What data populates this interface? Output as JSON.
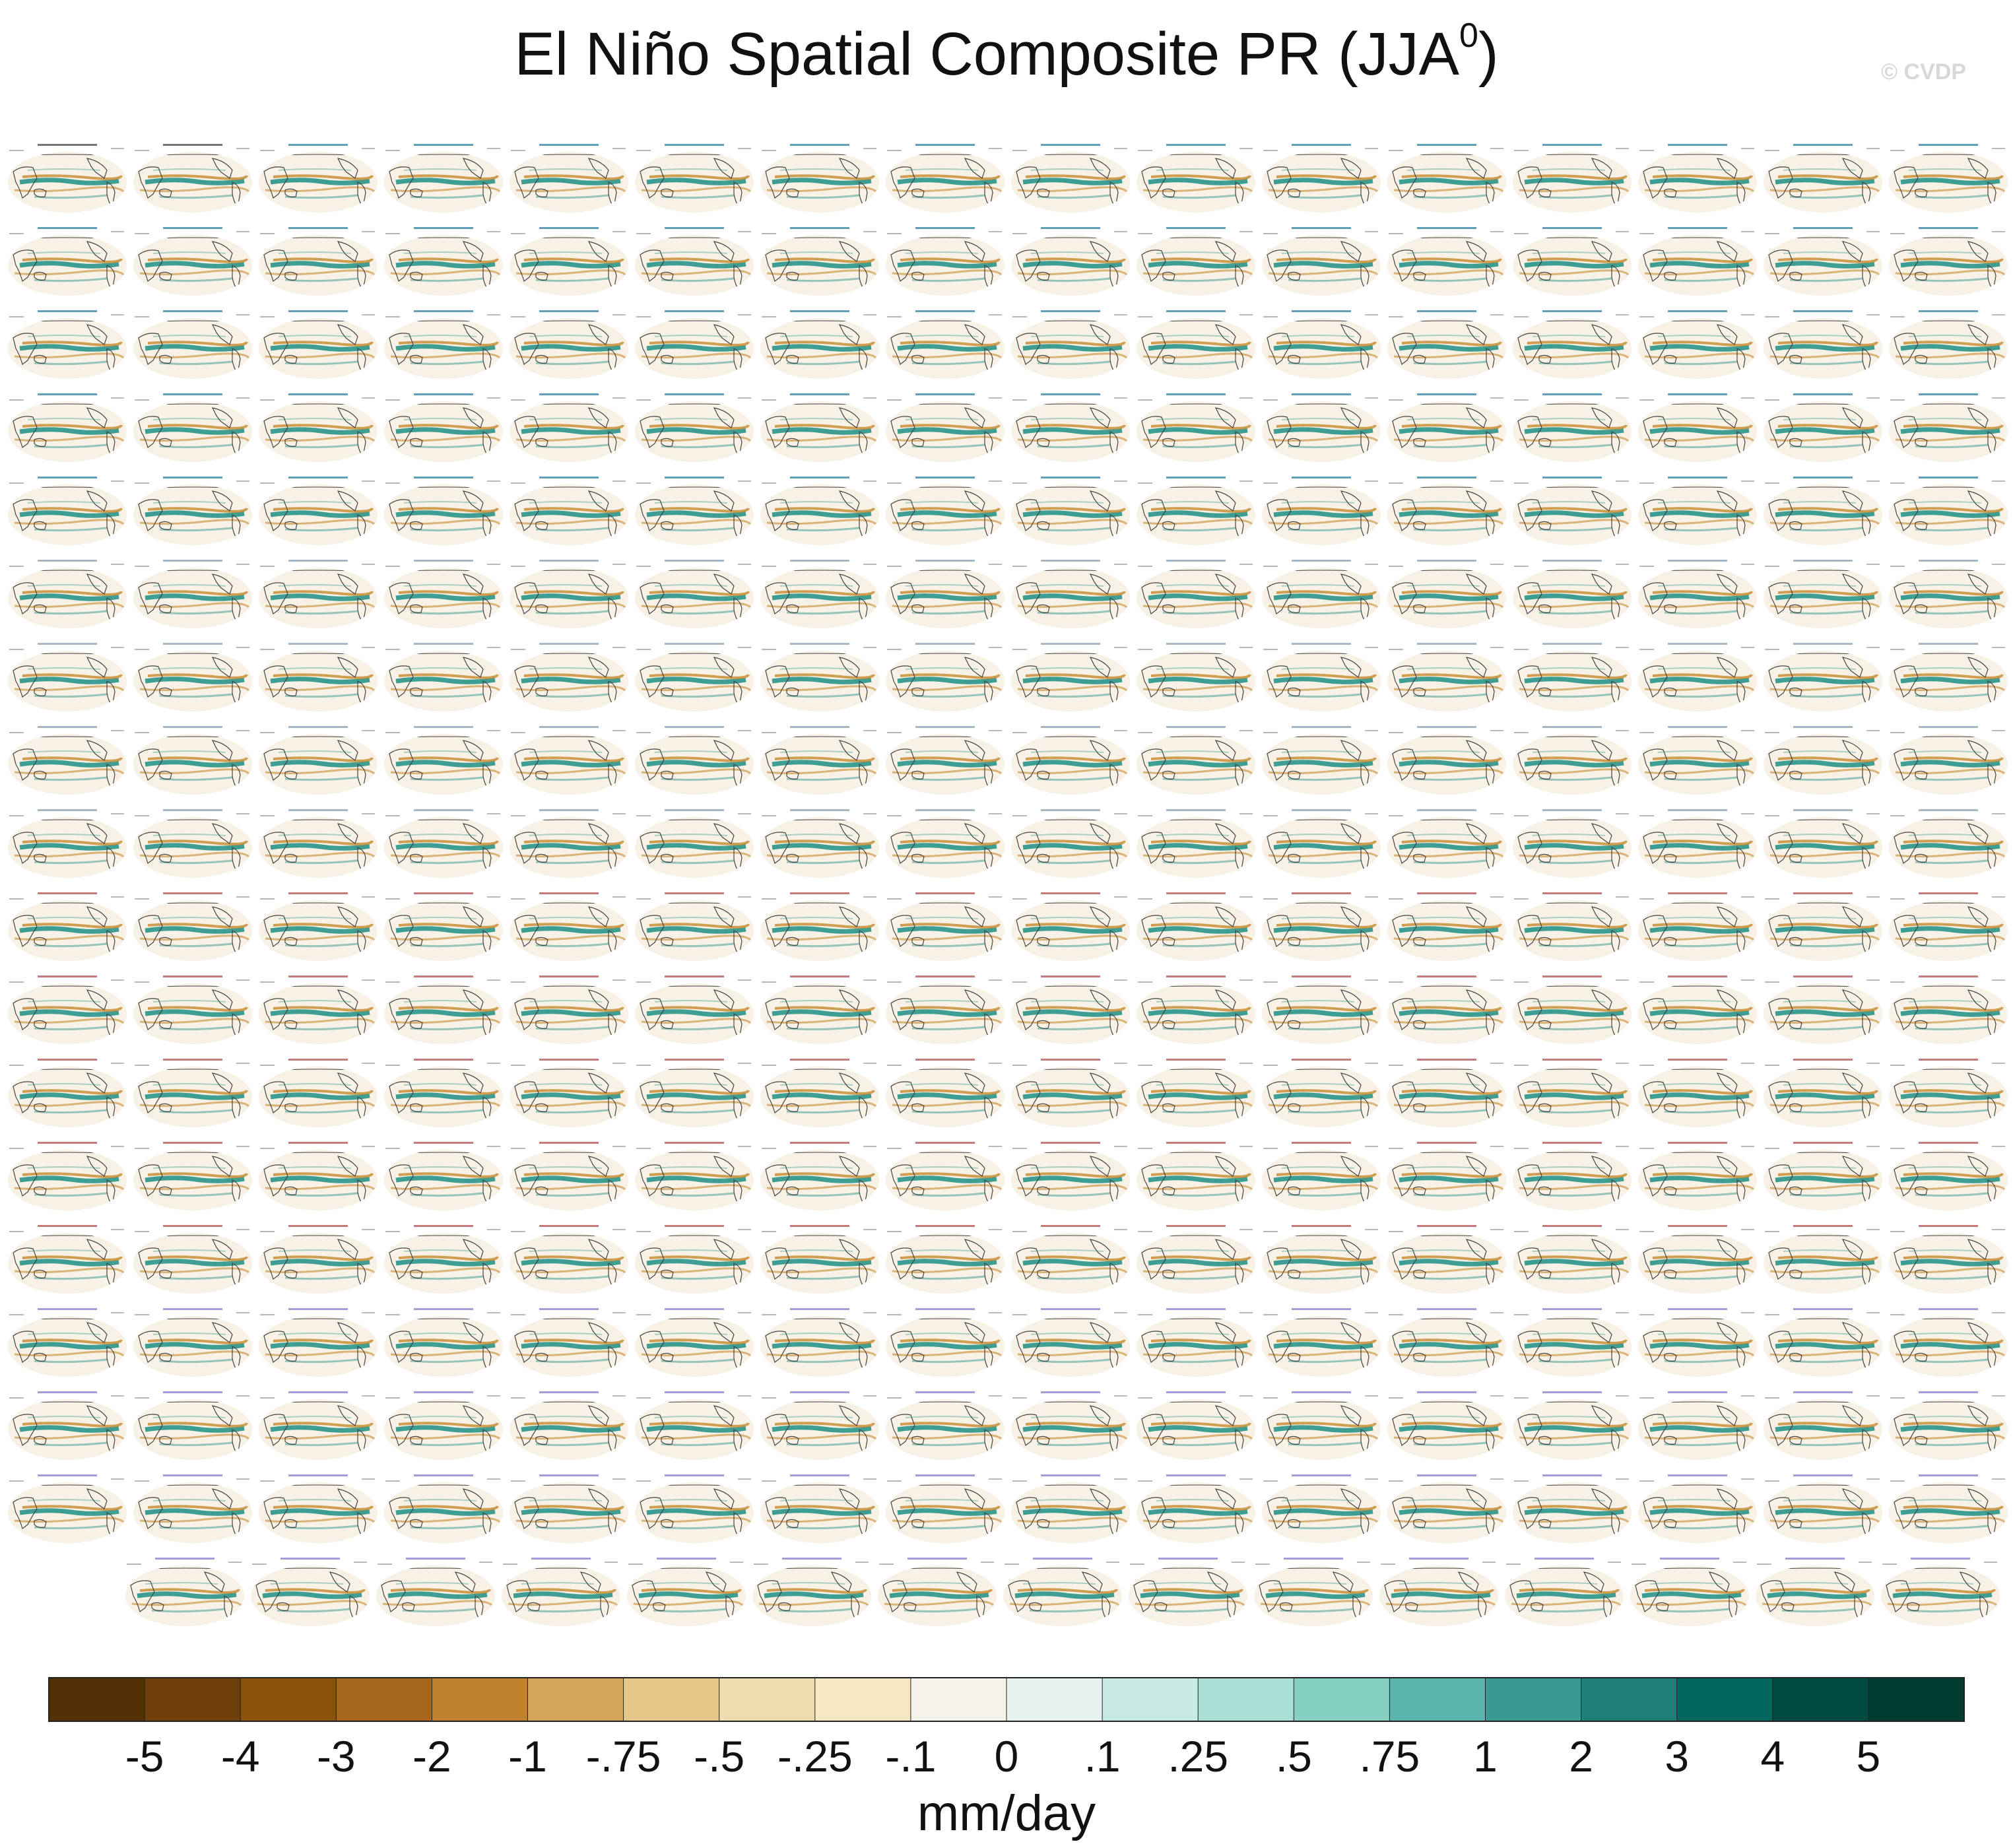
{
  "title": {
    "main": "El Niño Spatial Composite PR (JJA",
    "superscript": "0",
    "close": ")"
  },
  "watermark": "© CVDP",
  "chart_data": {
    "type": "heatmap",
    "title": "El Niño Spatial Composite PR (JJA0)",
    "layout": {
      "rows": 18,
      "columns_full_rows": 16,
      "panels_in_last_row": 15
    },
    "colorbar": {
      "unit_label": "mm/day",
      "tick_labels": [
        "-5",
        "-4",
        "-3",
        "-2",
        "-1",
        "-.75",
        "-.5",
        "-.25",
        "-.1",
        "0",
        ".1",
        ".25",
        ".5",
        ".75",
        "1",
        "2",
        "3",
        "4",
        "5"
      ],
      "levels": [
        -5,
        -4,
        -3,
        -2,
        -1,
        -0.75,
        -0.5,
        -0.25,
        -0.1,
        0,
        0.1,
        0.25,
        0.5,
        0.75,
        1,
        2,
        3,
        4,
        5
      ],
      "colors": [
        "#543005",
        "#6f3f09",
        "#8c510a",
        "#a6661e",
        "#bf812d",
        "#d3a55c",
        "#e4c688",
        "#eedcb0",
        "#f6e8c3",
        "#f5f2ec",
        "#e6f3ef",
        "#c7eae5",
        "#abdfd6",
        "#86cfc3",
        "#5ab4ac",
        "#3a9a91",
        "#1d7f76",
        "#01665e",
        "#014a42",
        "#003c30"
      ]
    },
    "panel_style": {
      "land_color": "#ffffff",
      "coastline_color": "#444444",
      "dry_anomaly_color": "#c68a2e",
      "wet_anomaly_color": "#1f8f85",
      "model_label_colors": [
        "#2f7fa0",
        "#8aa0b0",
        "#b05050",
        "#8a7ad0"
      ]
    },
    "panel_labels_observed": [
      "GPCC",
      "GPCP"
    ],
    "panel_label_groups": [
      "ACCESS-ESM1-5",
      "CanESM5",
      "CESM2",
      "CESM2-LE"
    ]
  }
}
